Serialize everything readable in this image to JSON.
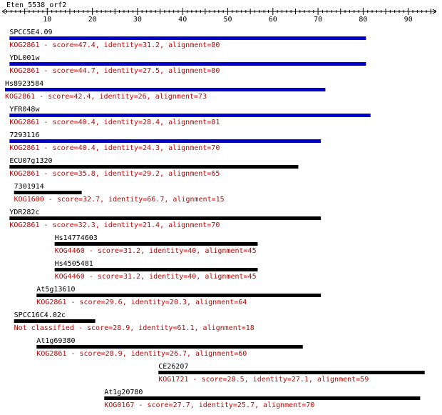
{
  "query": {
    "name": "Eten_5538_orf2",
    "axis_max": 100,
    "tick_labels": [
      "10",
      "20",
      "30",
      "40",
      "50",
      "60",
      "70",
      "80",
      "90"
    ]
  },
  "colors": {
    "text": "#000000",
    "desc": "#cc0000",
    "bar_best": "#0000cc",
    "bar_other": "#000000",
    "axis": "#000000"
  },
  "hits": [
    {
      "name": "SPCC5E4.09",
      "start": 1,
      "end": 80,
      "color": "bar_best",
      "desc": "KOG2861 - score=47.4, identity=31.2, alignment=80"
    },
    {
      "name": "YDL001w",
      "start": 1,
      "end": 80,
      "color": "bar_best",
      "desc": "KOG2861 - score=44.7, identity=27.5, alignment=80"
    },
    {
      "name": "Hs8923584",
      "start": 0,
      "end": 71,
      "color": "bar_best",
      "desc": "KOG2861 - score=42.4, identity=26, alignment=73"
    },
    {
      "name": "YFR048w",
      "start": 1,
      "end": 81,
      "color": "bar_best",
      "desc": "KOG2861 - score=40.4, identity=28.4, alignment=81"
    },
    {
      "name": "7293116",
      "start": 1,
      "end": 70,
      "color": "bar_best",
      "desc": "KOG2861 - score=40.4, identity=24.3, alignment=70"
    },
    {
      "name": "ECU07g1320",
      "start": 1,
      "end": 65,
      "color": "bar_other",
      "desc": "KOG2861 - score=35.8, identity=29.2, alignment=65"
    },
    {
      "name": "7301914",
      "start": 2,
      "end": 17,
      "color": "bar_other",
      "desc": "KOG1600 - score=32.7, identity=66.7, alignment=15"
    },
    {
      "name": "YDR282c",
      "start": 1,
      "end": 70,
      "color": "bar_other",
      "desc": "KOG2861 - score=32.3, identity=21.4, alignment=70"
    },
    {
      "name": "Hs14774603",
      "start": 11,
      "end": 56,
      "color": "bar_other",
      "desc": "KOG4460 - score=31.2, identity=40, alignment=45"
    },
    {
      "name": "Hs4505481",
      "start": 11,
      "end": 56,
      "color": "bar_other",
      "desc": "KOG4460 - score=31.2, identity=40, alignment=45"
    },
    {
      "name": "At5g13610",
      "start": 7,
      "end": 70,
      "color": "bar_other",
      "desc": "KOG2861 - score=29.6, identity=20.3, alignment=64"
    },
    {
      "name": "SPCC16C4.02c",
      "start": 2,
      "end": 20,
      "color": "bar_other",
      "desc": "Not classified - score=28.9, identity=61.1, alignment=18"
    },
    {
      "name": "At1g69380",
      "start": 7,
      "end": 66,
      "color": "bar_other",
      "desc": "KOG2861 - score=28.9, identity=26.7, alignment=60"
    },
    {
      "name": "CE26207",
      "start": 34,
      "end": 93,
      "color": "bar_other",
      "desc": "KOG1721 - score=28.5, identity=27.1, alignment=59"
    },
    {
      "name": "At1g20780",
      "start": 22,
      "end": 92,
      "color": "bar_other",
      "desc": "KOG0167 - score=27.7, identity=25.7, alignment=70"
    }
  ]
}
